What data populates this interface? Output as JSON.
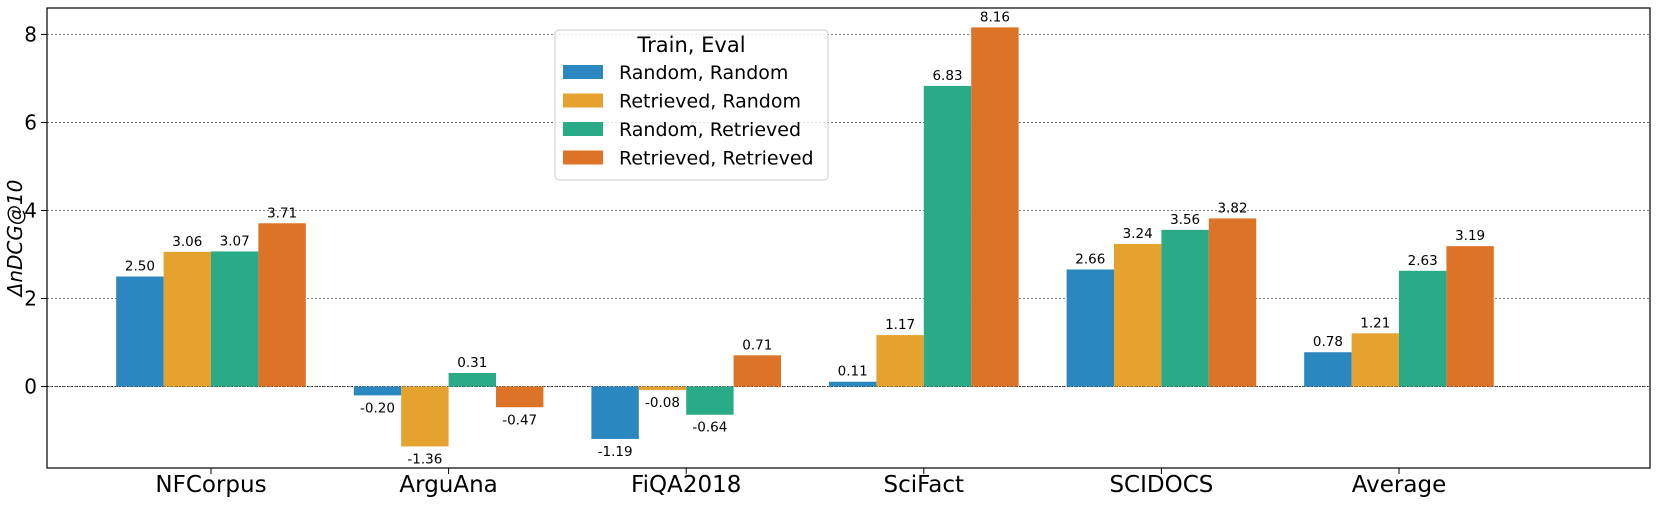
{
  "chart_data": {
    "type": "bar",
    "title": "",
    "xlabel": "",
    "ylabel": "ΔnDCG@10",
    "ylim": [
      -1.85,
      8.6
    ],
    "yticks": [
      0,
      2,
      4,
      6,
      8
    ],
    "grid": "horizontal-dotted",
    "categories": [
      "NFCorpus",
      "ArguAna",
      "FiQA2018",
      "SciFact",
      "SCIDOCS",
      "Average"
    ],
    "legend": {
      "title": "Train, Eval",
      "placement": "top-center"
    },
    "series": [
      {
        "name": "Random, Random",
        "color": "#2b87c0",
        "values": [
          2.5,
          -0.2,
          -1.19,
          0.11,
          2.66,
          0.78
        ],
        "labels": [
          "2.50",
          "-0.20",
          "-1.19",
          "0.11",
          "2.66",
          "0.78"
        ]
      },
      {
        "name": "Retrieved, Random",
        "color": "#e6a22e",
        "values": [
          3.06,
          -1.36,
          -0.08,
          1.17,
          3.24,
          1.21
        ],
        "labels": [
          "3.06",
          "-1.36",
          "-0.08",
          "1.17",
          "3.24",
          "1.21"
        ]
      },
      {
        "name": "Random, Retrieved",
        "color": "#2aab88",
        "values": [
          3.07,
          0.31,
          -0.64,
          6.83,
          3.56,
          2.63
        ],
        "labels": [
          "3.07",
          "0.31",
          "-0.64",
          "6.83",
          "3.56",
          "2.63"
        ]
      },
      {
        "name": "Retrieved, Retrieved",
        "color": "#dc7327",
        "values": [
          3.71,
          -0.47,
          0.71,
          8.16,
          3.82,
          3.19
        ],
        "labels": [
          "3.71",
          "-0.47",
          "0.71",
          "8.16",
          "3.82",
          "3.19"
        ]
      }
    ]
  }
}
